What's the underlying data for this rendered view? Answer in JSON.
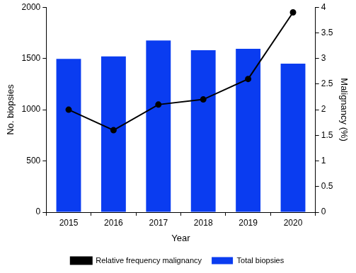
{
  "chart_data": {
    "type": "bar",
    "categories": [
      "2015",
      "2016",
      "2017",
      "2018",
      "2019",
      "2020"
    ],
    "series": [
      {
        "name": "Total biopsies",
        "type": "bar",
        "color": "#0a3cf0",
        "values": [
          1495,
          1520,
          1675,
          1580,
          1595,
          1450
        ]
      },
      {
        "name": "Relative frequency malignancy",
        "type": "line",
        "color": "#000000",
        "marker": "circle",
        "line_style": "solid",
        "axis": "y2",
        "values": [
          2.0,
          1.6,
          2.1,
          2.2,
          2.6,
          3.9
        ]
      }
    ],
    "x_label": "Year",
    "y_label": "No. biopsies",
    "y2_label": "Malignancy (%)",
    "ylim": [
      0,
      2000
    ],
    "yticks": [
      0,
      500,
      1000,
      1500,
      2000
    ],
    "y2lim": [
      0,
      4
    ],
    "y2ticks": [
      0,
      0.5,
      1,
      1.5,
      2,
      2.5,
      3,
      3.5,
      4
    ],
    "grid": false,
    "legend": "bottom"
  }
}
